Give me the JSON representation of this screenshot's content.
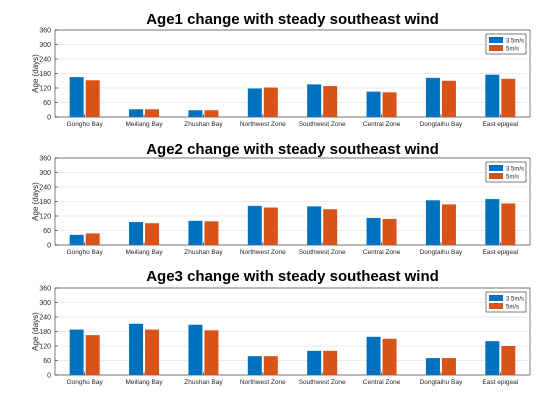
{
  "colors": {
    "series1": "#0072BD",
    "series2": "#D95319",
    "axis": "#262626",
    "grid": "#e6e6e6"
  },
  "chart_data": [
    {
      "type": "bar",
      "title": "Age1 change with steady southeast wind",
      "ylabel": "Age (days)",
      "xlabel": "",
      "ylim": [
        0,
        360
      ],
      "yticks": [
        0,
        60,
        120,
        180,
        240,
        300,
        360
      ],
      "grid": true,
      "legend_position": "top-right",
      "categories": [
        "Gonghu Bay",
        "Meiliang Bay",
        "Zhushan Bay",
        "Northwest Zone",
        "Southwest Zone",
        "Central Zone",
        "Dongtaihu Bay",
        "East epigeal"
      ],
      "series": [
        {
          "name": "3.5m/s",
          "values": [
            165,
            32,
            28,
            118,
            135,
            105,
            162,
            175
          ]
        },
        {
          "name": "5m/s",
          "values": [
            152,
            32,
            28,
            122,
            128,
            102,
            150,
            158
          ]
        }
      ]
    },
    {
      "type": "bar",
      "title": "Age2 change with steady southeast wind",
      "ylabel": "Age (days)",
      "xlabel": "",
      "ylim": [
        0,
        360
      ],
      "yticks": [
        0,
        60,
        120,
        180,
        240,
        300,
        360
      ],
      "grid": true,
      "legend_position": "top-right",
      "categories": [
        "Gonghu Bay",
        "Meiliang Bay",
        "Zhushan Bay",
        "Northwest Zone",
        "Southwest Zone",
        "Central Zone",
        "Dongtaihu Bay",
        "East epigeal"
      ],
      "series": [
        {
          "name": "3.5m/s",
          "values": [
            42,
            95,
            100,
            162,
            160,
            112,
            185,
            190
          ]
        },
        {
          "name": "5m/s",
          "values": [
            48,
            90,
            98,
            155,
            148,
            108,
            168,
            172
          ]
        }
      ]
    },
    {
      "type": "bar",
      "title": "Age3 change with steady southeast wind",
      "ylabel": "Age (days)",
      "xlabel": "",
      "ylim": [
        0,
        360
      ],
      "yticks": [
        0,
        60,
        120,
        180,
        240,
        300,
        360
      ],
      "grid": true,
      "legend_position": "top-right",
      "categories": [
        "Gonghu Bay",
        "Meiliang Bay",
        "Zhushan Bay",
        "Northwest Zone",
        "Southwest Zone",
        "Central Zone",
        "Dongtaihu Bay",
        "East epigeal"
      ],
      "series": [
        {
          "name": "3.5m/s",
          "values": [
            188,
            212,
            208,
            78,
            100,
            158,
            70,
            140
          ]
        },
        {
          "name": "5m/s",
          "values": [
            165,
            188,
            185,
            78,
            100,
            150,
            70,
            120
          ]
        }
      ]
    }
  ]
}
